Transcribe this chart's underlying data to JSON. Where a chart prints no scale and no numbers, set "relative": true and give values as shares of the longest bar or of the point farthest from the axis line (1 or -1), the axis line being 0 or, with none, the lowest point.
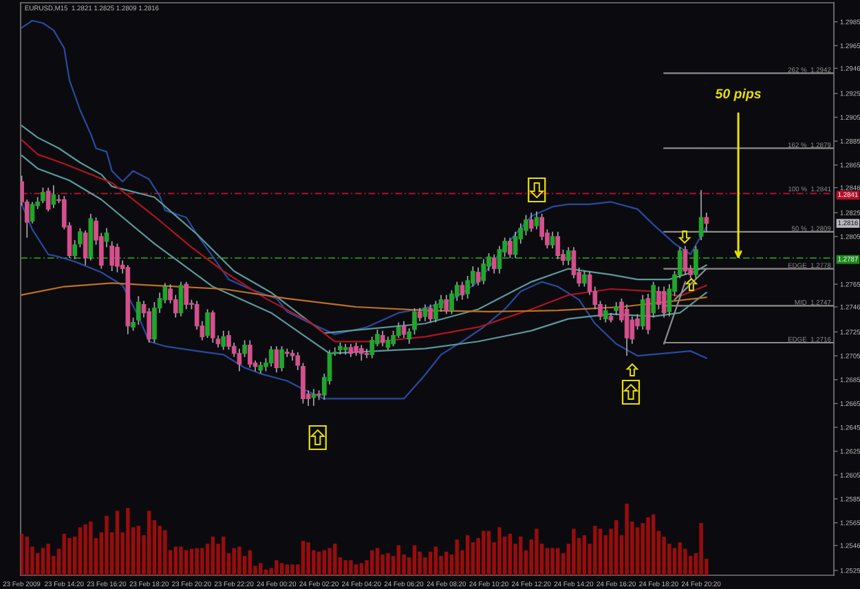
{
  "chart_data": [
    {
      "type": "candlestick",
      "title": "EURUSD,M15  1.2821 1.2825 1.2809 1.2816",
      "xlim": [
        "2009-02-23T12:17",
        "2009-02-25T02:35"
      ],
      "xticks": [
        {
          "value": "2009-02-23T12:20",
          "label": "23 Feb 2009"
        },
        {
          "value": "2009-02-23T14:20",
          "label": "23 Feb 14:20"
        },
        {
          "value": "2009-02-23T16:20",
          "label": "23 Feb 16:20"
        },
        {
          "value": "2009-02-23T18:20",
          "label": "23 Feb 18:20"
        },
        {
          "value": "2009-02-23T20:20",
          "label": "23 Feb 20:20"
        },
        {
          "value": "2009-02-23T22:20",
          "label": "23 Feb 22:20"
        },
        {
          "value": "2009-02-24T00:20",
          "label": "24 Feb 00:20"
        },
        {
          "value": "2009-02-24T02:20",
          "label": "24 Feb 02:20"
        },
        {
          "value": "2009-02-24T04:20",
          "label": "24 Feb 04:20"
        },
        {
          "value": "2009-02-24T06:20",
          "label": "24 Feb 06:20"
        },
        {
          "value": "2009-02-24T08:20",
          "label": "24 Feb 08:20"
        },
        {
          "value": "2009-02-24T10:20",
          "label": "24 Feb 10:20"
        },
        {
          "value": "2009-02-24T12:20",
          "label": "24 Feb 12:20"
        },
        {
          "value": "2009-02-24T14:20",
          "label": "24 Feb 14:20"
        },
        {
          "value": "2009-02-24T16:20",
          "label": "24 Feb 16:20"
        },
        {
          "value": "2009-02-24T18:20",
          "label": "24 Feb 18:20"
        },
        {
          "value": "2009-02-24T20:20",
          "label": "24 Feb 20:20"
        }
      ],
      "ylim": [
        1.2521,
        1.3001
      ],
      "yticks": [
        1.2525,
        1.2546,
        1.2565,
        1.2585,
        1.2605,
        1.2625,
        1.2645,
        1.2665,
        1.2685,
        1.2705,
        1.2725,
        1.2746,
        1.2765,
        1.2805,
        1.2825,
        1.2846,
        1.2865,
        1.2885,
        1.2905,
        1.2925,
        1.2946,
        1.2965,
        1.2985
      ],
      "color": "#a8a8ae",
      "x": [
        "2009-02-23T12:20",
        "2009-02-23T12:35",
        "2009-02-23T12:50",
        "2009-02-23T13:05",
        "2009-02-23T13:20",
        "2009-02-23T13:35",
        "2009-02-23T13:50",
        "2009-02-23T14:05",
        "2009-02-23T14:20",
        "2009-02-23T14:35",
        "2009-02-23T14:50",
        "2009-02-23T15:05",
        "2009-02-23T15:20",
        "2009-02-23T15:35",
        "2009-02-23T15:50",
        "2009-02-23T16:05",
        "2009-02-23T16:20",
        "2009-02-23T16:35",
        "2009-02-23T16:50",
        "2009-02-23T17:05",
        "2009-02-23T17:20",
        "2009-02-23T17:35",
        "2009-02-23T17:50",
        "2009-02-23T18:05",
        "2009-02-23T18:20",
        "2009-02-23T18:35",
        "2009-02-23T18:50",
        "2009-02-23T19:05",
        "2009-02-23T19:20",
        "2009-02-23T19:35",
        "2009-02-23T19:50",
        "2009-02-23T20:05",
        "2009-02-23T20:20",
        "2009-02-23T20:35",
        "2009-02-23T20:50",
        "2009-02-23T21:05",
        "2009-02-23T21:20",
        "2009-02-23T21:35",
        "2009-02-23T21:50",
        "2009-02-23T22:05",
        "2009-02-23T22:20",
        "2009-02-23T22:35",
        "2009-02-23T22:50",
        "2009-02-23T23:05",
        "2009-02-23T23:20",
        "2009-02-23T23:35",
        "2009-02-23T23:50",
        "2009-02-24T00:05",
        "2009-02-24T00:20",
        "2009-02-24T00:35",
        "2009-02-24T00:50",
        "2009-02-24T01:05",
        "2009-02-24T01:20",
        "2009-02-24T01:35",
        "2009-02-24T01:50",
        "2009-02-24T02:05",
        "2009-02-24T02:20",
        "2009-02-24T02:35",
        "2009-02-24T02:50",
        "2009-02-24T03:05",
        "2009-02-24T03:20",
        "2009-02-24T03:35",
        "2009-02-24T03:50",
        "2009-02-24T04:05",
        "2009-02-24T04:20",
        "2009-02-24T04:35",
        "2009-02-24T04:50",
        "2009-02-24T05:05",
        "2009-02-24T05:20",
        "2009-02-24T05:35",
        "2009-02-24T05:50",
        "2009-02-24T06:05",
        "2009-02-24T06:20",
        "2009-02-24T06:35",
        "2009-02-24T06:50",
        "2009-02-24T07:05",
        "2009-02-24T07:20",
        "2009-02-24T07:35",
        "2009-02-24T07:50",
        "2009-02-24T08:05",
        "2009-02-24T08:20",
        "2009-02-24T08:35",
        "2009-02-24T08:50",
        "2009-02-24T09:05",
        "2009-02-24T09:20",
        "2009-02-24T09:35",
        "2009-02-24T09:50",
        "2009-02-24T10:05",
        "2009-02-24T10:20",
        "2009-02-24T10:35",
        "2009-02-24T10:50",
        "2009-02-24T11:05",
        "2009-02-24T11:20",
        "2009-02-24T11:35",
        "2009-02-24T11:50",
        "2009-02-24T12:05",
        "2009-02-24T12:20",
        "2009-02-24T12:35",
        "2009-02-24T12:50",
        "2009-02-24T13:05",
        "2009-02-24T13:20",
        "2009-02-24T13:35",
        "2009-02-24T13:50",
        "2009-02-24T14:05",
        "2009-02-24T14:20",
        "2009-02-24T14:35",
        "2009-02-24T14:50",
        "2009-02-24T15:05",
        "2009-02-24T15:20",
        "2009-02-24T15:35",
        "2009-02-24T15:50",
        "2009-02-24T16:05",
        "2009-02-24T16:20",
        "2009-02-24T16:35",
        "2009-02-24T16:50",
        "2009-02-24T17:05",
        "2009-02-24T17:20",
        "2009-02-24T17:35",
        "2009-02-24T17:50",
        "2009-02-24T18:05",
        "2009-02-24T18:20",
        "2009-02-24T18:35",
        "2009-02-24T18:50",
        "2009-02-24T19:05",
        "2009-02-24T19:20",
        "2009-02-24T19:35",
        "2009-02-24T19:50",
        "2009-02-24T20:05",
        "2009-02-24T20:20",
        "2009-02-24T20:35"
      ],
      "ohlc": [
        [
          1.2851,
          1.2856,
          1.2831,
          1.2834
        ],
        [
          1.2834,
          1.2836,
          1.2804,
          1.2817
        ],
        [
          1.2818,
          1.2834,
          1.2816,
          1.2832
        ],
        [
          1.2831,
          1.2838,
          1.2828,
          1.2834
        ],
        [
          1.2835,
          1.2846,
          1.2833,
          1.2842
        ],
        [
          1.2843,
          1.2846,
          1.2826,
          1.2828
        ],
        [
          1.2832,
          1.2848,
          1.2829,
          1.284
        ],
        [
          1.2836,
          1.284,
          1.2833,
          1.2835
        ],
        [
          1.2836,
          1.2839,
          1.2811,
          1.2813
        ],
        [
          1.2814,
          1.2817,
          1.2787,
          1.2789
        ],
        [
          1.2789,
          1.2802,
          1.2786,
          1.2798
        ],
        [
          1.2799,
          1.2812,
          1.2796,
          1.2809
        ],
        [
          1.2808,
          1.281,
          1.2781,
          1.2787
        ],
        [
          1.2788,
          1.2824,
          1.2785,
          1.282
        ],
        [
          1.2818,
          1.2821,
          1.2798,
          1.2802
        ],
        [
          1.2805,
          1.2808,
          1.2778,
          1.2781
        ],
        [
          1.2801,
          1.2812,
          1.2796,
          1.2808
        ],
        [
          1.2797,
          1.2801,
          1.2776,
          1.2781
        ],
        [
          1.2796,
          1.2799,
          1.2775,
          1.278
        ],
        [
          1.2781,
          1.2785,
          1.2774,
          1.2778
        ],
        [
          1.2779,
          1.2781,
          1.2723,
          1.273
        ],
        [
          1.2729,
          1.2737,
          1.2726,
          1.2733
        ],
        [
          1.2735,
          1.2755,
          1.2731,
          1.275
        ],
        [
          1.2748,
          1.2751,
          1.2737,
          1.2741
        ],
        [
          1.2742,
          1.2745,
          1.2716,
          1.2719
        ],
        [
          1.2719,
          1.275,
          1.2716,
          1.2745
        ],
        [
          1.2745,
          1.2758,
          1.2741,
          1.2753
        ],
        [
          1.2752,
          1.2766,
          1.2749,
          1.2763
        ],
        [
          1.2761,
          1.2765,
          1.2749,
          1.2752
        ],
        [
          1.2752,
          1.2756,
          1.2737,
          1.2741
        ],
        [
          1.2741,
          1.2767,
          1.2738,
          1.2764
        ],
        [
          1.2765,
          1.2767,
          1.2744,
          1.2748
        ],
        [
          1.2749,
          1.2752,
          1.2744,
          1.2748
        ],
        [
          1.2748,
          1.2751,
          1.2727,
          1.273
        ],
        [
          1.273,
          1.2734,
          1.2718,
          1.2721
        ],
        [
          1.2722,
          1.2744,
          1.272,
          1.2741
        ],
        [
          1.2741,
          1.2743,
          1.2716,
          1.272
        ],
        [
          1.2719,
          1.2722,
          1.2712,
          1.2715
        ],
        [
          1.2713,
          1.2726,
          1.271,
          1.2721
        ],
        [
          1.2722,
          1.2726,
          1.271,
          1.2713
        ],
        [
          1.2713,
          1.2716,
          1.2704,
          1.2707
        ],
        [
          1.2707,
          1.2711,
          1.2692,
          1.2698
        ],
        [
          1.2707,
          1.2718,
          1.2704,
          1.2714
        ],
        [
          1.2714,
          1.2718,
          1.2695,
          1.2698
        ],
        [
          1.2699,
          1.2701,
          1.2692,
          1.2696
        ],
        [
          1.2693,
          1.27,
          1.269,
          1.2697
        ],
        [
          1.2696,
          1.2703,
          1.2692,
          1.2699
        ],
        [
          1.2699,
          1.2713,
          1.2696,
          1.271
        ],
        [
          1.271,
          1.2713,
          1.2691,
          1.2695
        ],
        [
          1.2695,
          1.2713,
          1.2692,
          1.271
        ],
        [
          1.2708,
          1.2711,
          1.2704,
          1.2707
        ],
        [
          1.2707,
          1.271,
          1.2701,
          1.2705
        ],
        [
          1.2705,
          1.2708,
          1.2693,
          1.2697
        ],
        [
          1.2696,
          1.2699,
          1.2665,
          1.2669
        ],
        [
          1.2673,
          1.2676,
          1.2663,
          1.2669
        ],
        [
          1.267,
          1.2677,
          1.2663,
          1.2673
        ],
        [
          1.2673,
          1.2676,
          1.2668,
          1.2672
        ],
        [
          1.2672,
          1.269,
          1.2668,
          1.2687
        ],
        [
          1.2684,
          1.271,
          1.2681,
          1.2707
        ],
        [
          1.2707,
          1.2712,
          1.2705,
          1.2708
        ],
        [
          1.271,
          1.2716,
          1.2706,
          1.2713
        ],
        [
          1.271,
          1.2715,
          1.2706,
          1.2712
        ],
        [
          1.2712,
          1.2715,
          1.2704,
          1.2707
        ],
        [
          1.2713,
          1.2716,
          1.2705,
          1.2708
        ],
        [
          1.2711,
          1.2714,
          1.2701,
          1.2707
        ],
        [
          1.2707,
          1.2711,
          1.2703,
          1.2706
        ],
        [
          1.2706,
          1.2721,
          1.2703,
          1.2718
        ],
        [
          1.2715,
          1.2727,
          1.2713,
          1.2723
        ],
        [
          1.2722,
          1.2726,
          1.2713,
          1.2716
        ],
        [
          1.2712,
          1.2721,
          1.271,
          1.2718
        ],
        [
          1.2715,
          1.2726,
          1.2713,
          1.2722
        ],
        [
          1.2722,
          1.2733,
          1.272,
          1.2729
        ],
        [
          1.273,
          1.2734,
          1.272,
          1.2723
        ],
        [
          1.2719,
          1.2728,
          1.2715,
          1.2725
        ],
        [
          1.2727,
          1.2745,
          1.2723,
          1.2742
        ],
        [
          1.2742,
          1.2745,
          1.2734,
          1.2737
        ],
        [
          1.2738,
          1.2748,
          1.2734,
          1.2745
        ],
        [
          1.2745,
          1.2748,
          1.2733,
          1.2736
        ],
        [
          1.2736,
          1.2751,
          1.2733,
          1.2748
        ],
        [
          1.2745,
          1.2756,
          1.2742,
          1.2752
        ],
        [
          1.2752,
          1.2756,
          1.274,
          1.2743
        ],
        [
          1.2743,
          1.276,
          1.274,
          1.2757
        ],
        [
          1.2755,
          1.2767,
          1.2751,
          1.2764
        ],
        [
          1.2764,
          1.2767,
          1.2752,
          1.2756
        ],
        [
          1.2757,
          1.2772,
          1.2753,
          1.2768
        ],
        [
          1.2766,
          1.278,
          1.2763,
          1.2776
        ],
        [
          1.2775,
          1.2779,
          1.2764,
          1.2767
        ],
        [
          1.2768,
          1.2786,
          1.2765,
          1.2782
        ],
        [
          1.278,
          1.2791,
          1.2776,
          1.2788
        ],
        [
          1.2787,
          1.279,
          1.2774,
          1.2778
        ],
        [
          1.2778,
          1.2797,
          1.2774,
          1.2794
        ],
        [
          1.2792,
          1.2804,
          1.2788,
          1.2801
        ],
        [
          1.2801,
          1.2804,
          1.2787,
          1.279
        ],
        [
          1.279,
          1.2809,
          1.2787,
          1.2805
        ],
        [
          1.2803,
          1.2816,
          1.2799,
          1.2812
        ],
        [
          1.281,
          1.2823,
          1.2806,
          1.2819
        ],
        [
          1.2819,
          1.2825,
          1.2809,
          1.2812
        ],
        [
          1.2814,
          1.2826,
          1.2811,
          1.2821
        ],
        [
          1.2821,
          1.2824,
          1.2802,
          1.2805
        ],
        [
          1.2808,
          1.2811,
          1.2795,
          1.2798
        ],
        [
          1.2798,
          1.2809,
          1.2795,
          1.2805
        ],
        [
          1.2805,
          1.2809,
          1.2786,
          1.2789
        ],
        [
          1.279,
          1.2794,
          1.2781,
          1.2785
        ],
        [
          1.2785,
          1.2796,
          1.2781,
          1.2793
        ],
        [
          1.2793,
          1.2796,
          1.277,
          1.2773
        ],
        [
          1.2775,
          1.2779,
          1.2763,
          1.2766
        ],
        [
          1.2766,
          1.2776,
          1.2763,
          1.2773
        ],
        [
          1.2773,
          1.2776,
          1.2756,
          1.2759
        ],
        [
          1.2759,
          1.2763,
          1.2744,
          1.2748
        ],
        [
          1.2748,
          1.2751,
          1.2735,
          1.2738
        ],
        [
          1.2736,
          1.2748,
          1.2733,
          1.2743
        ],
        [
          1.2738,
          1.2741,
          1.2733,
          1.2735
        ],
        [
          1.2743,
          1.275,
          1.2739,
          1.2746
        ],
        [
          1.275,
          1.2753,
          1.2733,
          1.2735
        ],
        [
          1.2744,
          1.2748,
          1.2705,
          1.272
        ],
        [
          1.2735,
          1.2738,
          1.2715,
          1.2719
        ],
        [
          1.2736,
          1.274,
          1.2727,
          1.273
        ],
        [
          1.273,
          1.2756,
          1.2727,
          1.2752
        ],
        [
          1.2753,
          1.2757,
          1.2723,
          1.2727
        ],
        [
          1.2741,
          1.2767,
          1.2737,
          1.2764
        ],
        [
          1.2759,
          1.2763,
          1.2744,
          1.2748
        ],
        [
          1.2759,
          1.2763,
          1.2737,
          1.2741
        ],
        [
          1.2742,
          1.2765,
          1.2738,
          1.2761
        ],
        [
          1.2759,
          1.2776,
          1.2755,
          1.2773
        ],
        [
          1.2773,
          1.2796,
          1.277,
          1.2793
        ],
        [
          1.2794,
          1.2797,
          1.2773,
          1.2776
        ],
        [
          1.2778,
          1.2781,
          1.277,
          1.2773
        ],
        [
          1.2773,
          1.2797,
          1.277,
          1.2794
        ],
        [
          1.2805,
          1.2844,
          1.2802,
          1.2821
        ],
        [
          1.2821,
          1.2825,
          1.2809,
          1.2816
        ]
      ],
      "colors": [
        "#d4508c",
        "#d4508c",
        "#21a52c",
        "#21a52c",
        "#21a52c",
        "#d4508c",
        "#21a52c",
        "#d4508c",
        "#d4508c",
        "#d4508c",
        "#21a52c",
        "#21a52c",
        "#d4508c",
        "#21a52c",
        "#d4508c",
        "#d4508c",
        "#21a52c",
        "#d4508c",
        "#d4508c",
        "#d4508c",
        "#d4508c",
        "#21a52c",
        "#21a52c",
        "#d4508c",
        "#d4508c",
        "#21a52c",
        "#21a52c",
        "#21a52c",
        "#d4508c",
        "#d4508c",
        "#21a52c",
        "#d4508c",
        "#d4508c",
        "#d4508c",
        "#d4508c",
        "#21a52c",
        "#d4508c",
        "#d4508c",
        "#21a52c",
        "#d4508c",
        "#d4508c",
        "#d4508c",
        "#21a52c",
        "#d4508c",
        "#d4508c",
        "#21a52c",
        "#21a52c",
        "#21a52c",
        "#d4508c",
        "#21a52c",
        "#d4508c",
        "#d4508c",
        "#d4508c",
        "#d4508c",
        "#d4508c",
        "#21a52c",
        "#d4508c",
        "#21a52c",
        "#21a52c",
        "#21a52c",
        "#21a52c",
        "#21a52c",
        "#d4508c",
        "#d4508c",
        "#d4508c",
        "#d4508c",
        "#21a52c",
        "#21a52c",
        "#d4508c",
        "#21a52c",
        "#21a52c",
        "#21a52c",
        "#d4508c",
        "#21a52c",
        "#21a52c",
        "#d4508c",
        "#21a52c",
        "#d4508c",
        "#21a52c",
        "#21a52c",
        "#d4508c",
        "#21a52c",
        "#21a52c",
        "#d4508c",
        "#21a52c",
        "#21a52c",
        "#d4508c",
        "#21a52c",
        "#21a52c",
        "#d4508c",
        "#21a52c",
        "#21a52c",
        "#d4508c",
        "#21a52c",
        "#21a52c",
        "#21a52c",
        "#d4508c",
        "#21a52c",
        "#d4508c",
        "#d4508c",
        "#21a52c",
        "#d4508c",
        "#d4508c",
        "#21a52c",
        "#d4508c",
        "#d4508c",
        "#21a52c",
        "#d4508c",
        "#d4508c",
        "#d4508c",
        "#21a52c",
        "#d4508c",
        "#21a52c",
        "#d4508c",
        "#d4508c",
        "#d4508c",
        "#d4508c",
        "#21a52c",
        "#d4508c",
        "#21a52c",
        "#d4508c",
        "#d4508c",
        "#21a52c",
        "#21a52c",
        "#21a52c",
        "#d4508c",
        "#d4508c",
        "#21a52c",
        "#21a52c",
        "#d4508c"
      ],
      "series": [
        {
          "type": "line",
          "color": "#2a4aa0",
          "x": [
            "2009-02-23T12:20",
            "2009-02-23T12:50",
            "2009-02-23T13:20",
            "2009-02-23T13:50",
            "2009-02-23T14:20",
            "2009-02-23T14:35",
            "2009-02-23T15:05",
            "2009-02-23T15:35",
            "2009-02-23T15:50",
            "2009-02-23T16:20",
            "2009-02-23T16:35",
            "2009-02-23T17:05",
            "2009-02-23T17:35",
            "2009-02-23T18:20",
            "2009-02-23T18:50",
            "2009-02-23T19:05",
            "2009-02-23T20:05",
            "2009-02-23T20:35",
            "2009-02-23T21:20",
            "2009-02-23T22:05",
            "2009-02-23T23:05",
            "2009-02-24T00:20",
            "2009-02-24T00:50",
            "2009-02-24T01:50",
            "2009-02-24T03:05",
            "2009-02-24T04:35",
            "2009-02-24T06:05",
            "2009-02-24T07:20",
            "2009-02-24T08:35",
            "2009-02-24T09:50",
            "2009-02-24T10:35",
            "2009-02-24T11:35",
            "2009-02-24T12:20",
            "2009-02-24T13:20",
            "2009-02-24T14:05",
            "2009-02-24T15:05",
            "2009-02-24T16:05",
            "2009-02-24T17:20",
            "2009-02-24T18:05",
            "2009-02-24T19:05",
            "2009-02-24T19:50",
            "2009-02-24T20:05",
            "2009-02-24T20:35"
          ],
          "values": [
            1.298,
            1.2986,
            1.2984,
            1.2978,
            1.2963,
            1.2936,
            1.2911,
            1.2891,
            1.2879,
            1.2876,
            1.286,
            1.2851,
            1.286,
            1.2853,
            1.2839,
            1.2827,
            1.2821,
            1.2807,
            1.2788,
            1.2769,
            1.2761,
            1.2753,
            1.2742,
            1.2733,
            1.2723,
            1.2729,
            1.2741,
            1.2745,
            1.2752,
            1.2767,
            1.2785,
            1.2807,
            1.2822,
            1.283,
            1.2832,
            1.2832,
            1.2834,
            1.2828,
            1.2815,
            1.2799,
            1.279,
            1.2798,
            1.2813
          ]
        },
        {
          "type": "line",
          "color": "#2a4aa0",
          "x": [
            "2009-02-23T12:20",
            "2009-02-23T12:50",
            "2009-02-23T13:35",
            "2009-02-23T14:05",
            "2009-02-23T14:50",
            "2009-02-23T16:05",
            "2009-02-23T17:05",
            "2009-02-23T17:50",
            "2009-02-23T18:20",
            "2009-02-23T19:05",
            "2009-02-23T20:35",
            "2009-02-23T21:50",
            "2009-02-23T22:50",
            "2009-02-23T23:35",
            "2009-02-24T00:50",
            "2009-02-24T01:35",
            "2009-02-24T02:35",
            "2009-02-24T06:20",
            "2009-02-24T07:20",
            "2009-02-24T08:05",
            "2009-02-24T09:05",
            "2009-02-24T10:05",
            "2009-02-24T11:05",
            "2009-02-24T11:50",
            "2009-02-24T12:50",
            "2009-02-24T13:35",
            "2009-02-24T14:35",
            "2009-02-24T15:20",
            "2009-02-24T16:20",
            "2009-02-24T17:20",
            "2009-02-24T18:35",
            "2009-02-24T19:50",
            "2009-02-24T20:35"
          ],
          "values": [
            1.2832,
            1.2811,
            1.279,
            1.2788,
            1.2784,
            1.2775,
            1.2764,
            1.2738,
            1.2717,
            1.2713,
            1.2709,
            1.2706,
            1.2695,
            1.269,
            1.2684,
            1.2677,
            1.2669,
            1.2669,
            1.2689,
            1.2706,
            1.2717,
            1.2729,
            1.2744,
            1.2759,
            1.2767,
            1.2763,
            1.2752,
            1.2732,
            1.2715,
            1.2705,
            1.2707,
            1.2709,
            1.2703
          ]
        },
        {
          "type": "line",
          "color": "#5b9a9a",
          "x": [
            "2009-02-23T12:20",
            "2009-02-23T13:05",
            "2009-02-23T14:05",
            "2009-02-23T15:05",
            "2009-02-23T16:05",
            "2009-02-23T16:35",
            "2009-02-23T18:35",
            "2009-02-23T20:35",
            "2009-02-23T22:20",
            "2009-02-24T00:05",
            "2009-02-24T01:20",
            "2009-02-24T02:35",
            "2009-02-24T07:20",
            "2009-02-24T09:50",
            "2009-02-24T12:20",
            "2009-02-24T14:05",
            "2009-02-24T16:05",
            "2009-02-24T17:20",
            "2009-02-24T18:50",
            "2009-02-24T20:05",
            "2009-02-24T20:35"
          ],
          "values": [
            1.2898,
            1.2888,
            1.2879,
            1.2867,
            1.2857,
            1.2847,
            1.2838,
            1.2807,
            1.2776,
            1.2758,
            1.2741,
            1.2724,
            1.2732,
            1.2744,
            1.2767,
            1.2778,
            1.2773,
            1.2769,
            1.2769,
            1.2776,
            1.2781
          ]
        },
        {
          "type": "line",
          "color": "#b0141e",
          "x": [
            "2009-02-23T12:20",
            "2009-02-23T13:05",
            "2009-02-23T14:20",
            "2009-02-23T16:35",
            "2009-02-23T18:35",
            "2009-02-23T20:20",
            "2009-02-23T21:50",
            "2009-02-23T23:50",
            "2009-02-24T01:50",
            "2009-02-24T03:05",
            "2009-02-24T05:05",
            "2009-02-24T07:20",
            "2009-02-24T09:50",
            "2009-02-24T12:20",
            "2009-02-24T14:05",
            "2009-02-24T16:05",
            "2009-02-24T18:05",
            "2009-02-24T19:20",
            "2009-02-24T20:35"
          ],
          "values": [
            1.2886,
            1.2874,
            1.2866,
            1.285,
            1.2822,
            1.2796,
            1.2776,
            1.2753,
            1.2734,
            1.2717,
            1.2717,
            1.2721,
            1.2729,
            1.2744,
            1.2756,
            1.2761,
            1.2759,
            1.2755,
            1.2764
          ]
        },
        {
          "type": "line",
          "color": "#5b9a9a",
          "x": [
            "2009-02-23T12:20",
            "2009-02-23T13:05",
            "2009-02-23T14:35",
            "2009-02-23T16:05",
            "2009-02-23T18:35",
            "2009-02-23T21:20",
            "2009-02-24T00:05",
            "2009-02-24T02:50",
            "2009-02-24T07:20",
            "2009-02-24T09:50",
            "2009-02-24T12:20",
            "2009-02-24T14:05",
            "2009-02-24T16:05",
            "2009-02-24T18:05",
            "2009-02-24T19:20",
            "2009-02-24T20:35"
          ],
          "values": [
            1.2873,
            1.2862,
            1.2852,
            1.2836,
            1.2799,
            1.2763,
            1.2741,
            1.2707,
            1.2711,
            1.2717,
            1.2726,
            1.2736,
            1.274,
            1.2738,
            1.2741,
            1.2758
          ]
        },
        {
          "type": "line",
          "color": "#c27020",
          "x": [
            "2009-02-23T12:20",
            "2009-02-23T14:20",
            "2009-02-23T16:35",
            "2009-02-23T18:35",
            "2009-02-23T21:50",
            "2009-02-24T00:50",
            "2009-02-24T04:05",
            "2009-02-24T07:20",
            "2009-02-24T10:20",
            "2009-02-24T13:35",
            "2009-02-24T16:35",
            "2009-02-24T20:35"
          ],
          "values": [
            1.2756,
            1.2763,
            1.2766,
            1.2764,
            1.2761,
            1.2753,
            1.2746,
            1.2743,
            1.2742,
            1.2743,
            1.2746,
            1.2754
          ]
        },
        {
          "type": "line",
          "color": "#8e8e8e",
          "x": [
            "2009-02-24T18:35",
            "2009-02-24T19:35"
          ],
          "values": [
            1.2715,
            1.2767
          ]
        },
        {
          "type": "line",
          "color": "#8e8e8e",
          "x": [
            "2009-02-24T19:05",
            "2009-02-24T20:35"
          ],
          "values": [
            1.2752,
            1.2778
          ]
        },
        {
          "type": "line",
          "name": "262 %  1.2942",
          "color": "#8e8e8e",
          "x": [
            "2009-02-24T18:35",
            "2009-02-25T02:35"
          ],
          "values": [
            1.2942,
            1.2942
          ]
        },
        {
          "type": "line",
          "name": "162 %  1.2879",
          "color": "#8e8e8e",
          "x": [
            "2009-02-24T18:35",
            "2009-02-25T02:35"
          ],
          "values": [
            1.2879,
            1.2879
          ]
        },
        {
          "type": "line",
          "name": "50 %  1.2809",
          "color": "#8e8e8e",
          "x": [
            "2009-02-24T18:35",
            "2009-02-25T02:35"
          ],
          "values": [
            1.2809,
            1.2809
          ]
        },
        {
          "type": "line",
          "name": "EDGE  1.2778",
          "color": "#8e8e8e",
          "x": [
            "2009-02-24T18:35",
            "2009-02-25T02:35"
          ],
          "values": [
            1.2778,
            1.2778
          ]
        },
        {
          "type": "line",
          "name": "MID  1.2747",
          "color": "#8e8e8e",
          "x": [
            "2009-02-24T18:35",
            "2009-02-25T02:35"
          ],
          "values": [
            1.2747,
            1.2747
          ]
        },
        {
          "type": "line",
          "name": "EDGE  1.2716",
          "color": "#8e8e8e",
          "x": [
            "2009-02-24T18:35",
            "2009-02-25T02:35"
          ],
          "values": [
            1.2716,
            1.2716
          ]
        }
      ],
      "ref_lines": [
        {
          "axis": "y",
          "value": 1.2841,
          "label": "1.2841",
          "color": "#b4102c",
          "line_style": "dashed"
        },
        {
          "axis": "y",
          "value": 1.2787,
          "label": "1.2787",
          "color": "#1e8c1e",
          "line_style": "dashed"
        }
      ],
      "annotations": [
        {
          "text": "50 pips",
          "x": "2009-02-24T22:05",
          "y": 1.2786
        },
        "100 %  1.2841",
        {
          "text": "1.2816",
          "y": 1.2816
        }
      ]
    },
    {
      "type": "bar",
      "relative": true,
      "tick_labels": false,
      "color": "#9a0c0c",
      "xlim": [
        "2009-02-23T12:17",
        "2009-02-25T02:35"
      ],
      "x": [
        "2009-02-23T12:20",
        "2009-02-23T12:35",
        "2009-02-23T12:50",
        "2009-02-23T13:05",
        "2009-02-23T13:20",
        "2009-02-23T13:35",
        "2009-02-23T13:50",
        "2009-02-23T14:05",
        "2009-02-23T14:20",
        "2009-02-23T14:35",
        "2009-02-23T14:50",
        "2009-02-23T15:05",
        "2009-02-23T15:20",
        "2009-02-23T15:35",
        "2009-02-23T15:50",
        "2009-02-23T16:05",
        "2009-02-23T16:20",
        "2009-02-23T16:35",
        "2009-02-23T16:50",
        "2009-02-23T17:05",
        "2009-02-23T17:20",
        "2009-02-23T17:35",
        "2009-02-23T17:50",
        "2009-02-23T18:05",
        "2009-02-23T18:20",
        "2009-02-23T18:35",
        "2009-02-23T18:50",
        "2009-02-23T19:05",
        "2009-02-23T19:20",
        "2009-02-23T19:35",
        "2009-02-23T19:50",
        "2009-02-23T20:05",
        "2009-02-23T20:20",
        "2009-02-23T20:35",
        "2009-02-23T20:50",
        "2009-02-23T21:05",
        "2009-02-23T21:20",
        "2009-02-23T21:35",
        "2009-02-23T21:50",
        "2009-02-23T22:05",
        "2009-02-23T22:20",
        "2009-02-23T22:35",
        "2009-02-23T22:50",
        "2009-02-23T23:05",
        "2009-02-23T23:20",
        "2009-02-23T23:35",
        "2009-02-23T23:50",
        "2009-02-24T00:05",
        "2009-02-24T00:20",
        "2009-02-24T00:35",
        "2009-02-24T00:50",
        "2009-02-24T01:05",
        "2009-02-24T01:20",
        "2009-02-24T01:35",
        "2009-02-24T01:50",
        "2009-02-24T02:05",
        "2009-02-24T02:20",
        "2009-02-24T02:35",
        "2009-02-24T02:50",
        "2009-02-24T03:05",
        "2009-02-24T03:20",
        "2009-02-24T03:35",
        "2009-02-24T03:50",
        "2009-02-24T04:05",
        "2009-02-24T04:20",
        "2009-02-24T04:35",
        "2009-02-24T04:50",
        "2009-02-24T05:05",
        "2009-02-24T05:20",
        "2009-02-24T05:35",
        "2009-02-24T05:50",
        "2009-02-24T06:05",
        "2009-02-24T06:20",
        "2009-02-24T06:35",
        "2009-02-24T06:50",
        "2009-02-24T07:05",
        "2009-02-24T07:20",
        "2009-02-24T07:35",
        "2009-02-24T07:50",
        "2009-02-24T08:05",
        "2009-02-24T08:20",
        "2009-02-24T08:35",
        "2009-02-24T08:50",
        "2009-02-24T09:05",
        "2009-02-24T09:20",
        "2009-02-24T09:35",
        "2009-02-24T09:50",
        "2009-02-24T10:05",
        "2009-02-24T10:20",
        "2009-02-24T10:35",
        "2009-02-24T10:50",
        "2009-02-24T11:05",
        "2009-02-24T11:20",
        "2009-02-24T11:35",
        "2009-02-24T11:50",
        "2009-02-24T12:05",
        "2009-02-24T12:20",
        "2009-02-24T12:35",
        "2009-02-24T12:50",
        "2009-02-24T13:05",
        "2009-02-24T13:20",
        "2009-02-24T13:35",
        "2009-02-24T13:50",
        "2009-02-24T14:05",
        "2009-02-24T14:20",
        "2009-02-24T14:35",
        "2009-02-24T14:50",
        "2009-02-24T15:05",
        "2009-02-24T15:20",
        "2009-02-24T15:35",
        "2009-02-24T15:50",
        "2009-02-24T16:05",
        "2009-02-24T16:20",
        "2009-02-24T16:35",
        "2009-02-24T16:50",
        "2009-02-24T17:05",
        "2009-02-24T17:20",
        "2009-02-24T17:35",
        "2009-02-24T17:50",
        "2009-02-24T18:05",
        "2009-02-24T18:20",
        "2009-02-24T18:35",
        "2009-02-24T18:50",
        "2009-02-24T19:05",
        "2009-02-24T19:20",
        "2009-02-24T19:35",
        "2009-02-24T19:50",
        "2009-02-24T20:05",
        "2009-02-24T20:20",
        "2009-02-24T20:35"
      ],
      "values": [
        0.58,
        0.54,
        0.4,
        0.31,
        0.38,
        0.44,
        0.27,
        0.37,
        0.58,
        0.52,
        0.54,
        0.67,
        0.71,
        0.75,
        0.52,
        0.6,
        0.83,
        0.6,
        0.9,
        0.6,
        0.94,
        0.67,
        0.69,
        0.56,
        0.9,
        0.77,
        0.69,
        0.63,
        0.35,
        0.4,
        0.4,
        0.35,
        0.37,
        0.38,
        0.38,
        0.44,
        0.54,
        0.44,
        0.54,
        0.31,
        0.38,
        0.4,
        0.27,
        0.35,
        0.13,
        0.17,
        0.08,
        0.1,
        0.21,
        0.17,
        0.15,
        0.15,
        0.15,
        0.48,
        0.46,
        0.35,
        0.33,
        0.35,
        0.38,
        0.44,
        0.25,
        0.21,
        0.21,
        0.15,
        0.17,
        0.21,
        0.35,
        0.38,
        0.29,
        0.31,
        0.27,
        0.42,
        0.29,
        0.25,
        0.42,
        0.33,
        0.25,
        0.33,
        0.4,
        0.27,
        0.33,
        0.29,
        0.5,
        0.35,
        0.56,
        0.46,
        0.52,
        0.62,
        0.62,
        0.46,
        0.67,
        0.54,
        0.58,
        0.44,
        0.54,
        0.35,
        0.5,
        0.65,
        0.44,
        0.38,
        0.38,
        0.38,
        0.31,
        0.44,
        0.65,
        0.52,
        0.56,
        0.44,
        0.69,
        0.65,
        0.56,
        0.65,
        0.77,
        0.56,
        1,
        0.75,
        0.67,
        0.73,
        0.81,
        0.85,
        0.62,
        0.54,
        0.44,
        0.38,
        0.46,
        0.37,
        0.27,
        0.31,
        0.73,
        0.23
      ]
    }
  ]
}
